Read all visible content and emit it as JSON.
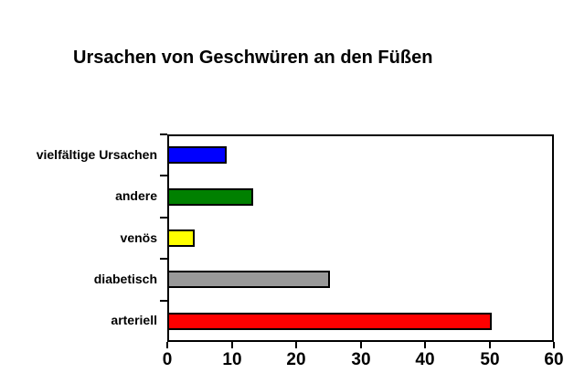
{
  "chart_data": {
    "type": "bar",
    "orientation": "horizontal",
    "title": "Ursachen von Geschwüren an den Füßen",
    "categories": [
      "vielfältige Ursachen",
      "andere",
      "venös",
      "diabetisch",
      "arteriell"
    ],
    "values": [
      9,
      13,
      4,
      25,
      50
    ],
    "bar_colors": [
      "#0000FF",
      "#008000",
      "#FFFF00",
      "#999999",
      "#FF0000"
    ],
    "xlabel": "",
    "ylabel": "",
    "xlim": [
      0,
      60
    ],
    "x_ticks": [
      0,
      10,
      20,
      30,
      40,
      50,
      60
    ],
    "grid": "off",
    "legend": "none",
    "frame_color": "#000000",
    "background_color": "#FFFFFF",
    "text_color": "#000000"
  }
}
